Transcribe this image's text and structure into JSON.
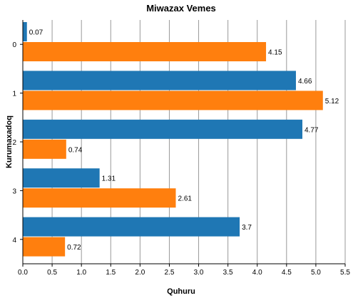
{
  "chart_data": {
    "type": "bar",
    "orientation": "horizontal",
    "title": "Miwazax Vemes",
    "xlabel": "Quhuru",
    "ylabel": "Kurumaxadoq",
    "categories": [
      "0",
      "1",
      "2",
      "3",
      "4"
    ],
    "series": [
      {
        "name": "series-1",
        "color": "#1f77b4",
        "values": [
          0.07,
          4.66,
          4.77,
          1.31,
          3.7
        ]
      },
      {
        "name": "series-2",
        "color": "#ff7f0e",
        "values": [
          4.15,
          5.12,
          0.74,
          2.61,
          0.72
        ]
      }
    ],
    "xlim": [
      0,
      5.5
    ],
    "xticks": [
      "0.0",
      "0.5",
      "1.0",
      "1.5",
      "2.0",
      "2.5",
      "3.0",
      "3.5",
      "4.0",
      "4.5",
      "5.0",
      "5.5"
    ],
    "grid": true
  }
}
